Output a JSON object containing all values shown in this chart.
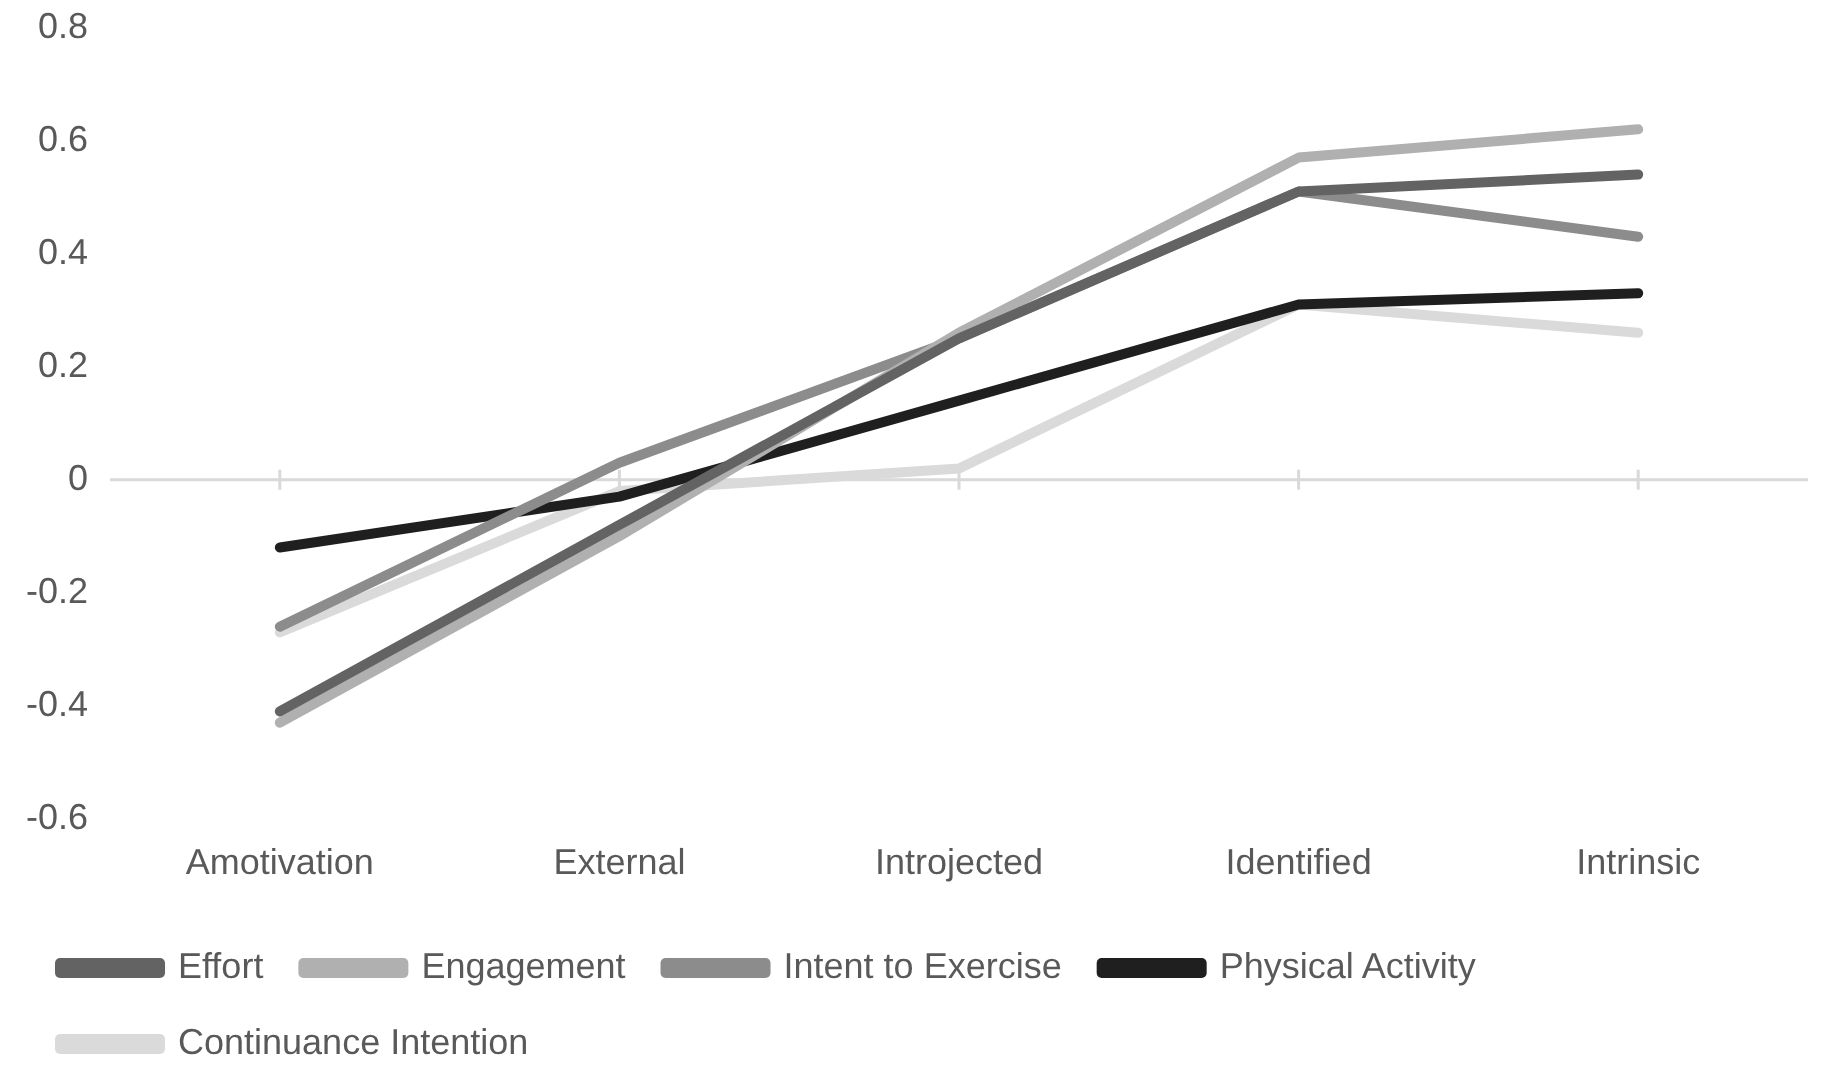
{
  "chart_data": {
    "type": "line",
    "categories": [
      "Amotivation",
      "External",
      "Introjected",
      "Identified",
      "Intrinsic"
    ],
    "series": [
      {
        "name": "Effort",
        "color": "#636363",
        "values": [
          -0.41,
          -0.08,
          0.25,
          0.51,
          0.54
        ]
      },
      {
        "name": "Engagement",
        "color": "#b0b0b0",
        "values": [
          -0.43,
          -0.1,
          0.26,
          0.57,
          0.62
        ]
      },
      {
        "name": "Intent to Exercise",
        "color": "#8c8c8c",
        "values": [
          -0.26,
          0.03,
          0.25,
          0.51,
          0.43
        ]
      },
      {
        "name": "Physical Activity",
        "color": "#1f1f1f",
        "values": [
          -0.12,
          -0.03,
          0.14,
          0.31,
          0.33
        ]
      },
      {
        "name": "Continuance Intention",
        "color": "#dadada",
        "values": [
          -0.27,
          -0.02,
          0.02,
          0.31,
          0.26
        ]
      }
    ],
    "ylim": [
      -0.6,
      0.8
    ],
    "yticks": [
      -0.6,
      -0.4,
      -0.2,
      0,
      0.2,
      0.4,
      0.6,
      0.8
    ],
    "ref_lines": [
      {
        "axis": "y",
        "value": 0,
        "color": "#d9d9d9"
      }
    ],
    "legend": "bottom",
    "marker": "none",
    "line_style": "solid"
  }
}
